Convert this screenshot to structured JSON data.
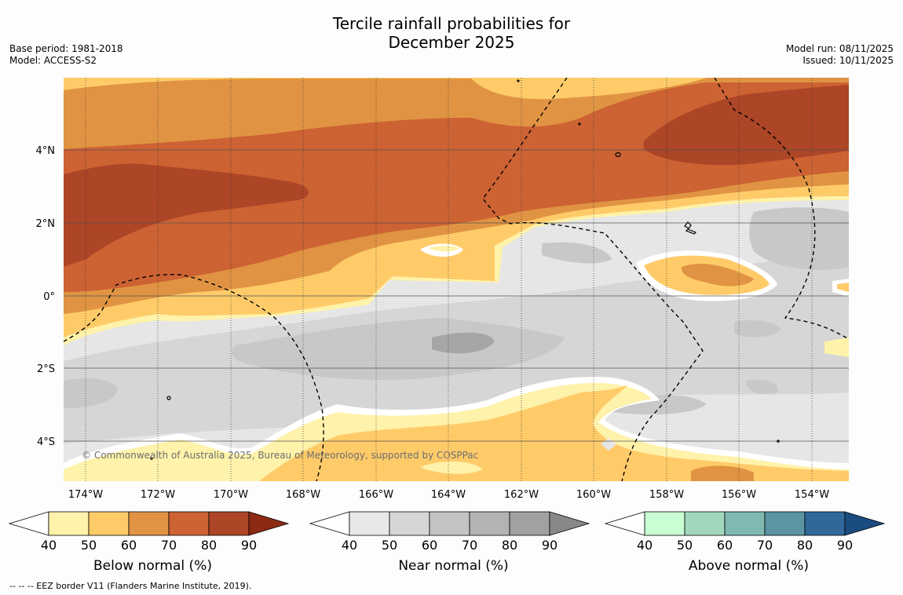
{
  "title_line1": "Tercile rainfall probabilities for",
  "title_line2": "December 2025",
  "base_period": "Base period: 1981-2018",
  "model": "Model: ACCESS-S2",
  "model_run": "Model run: 08/11/2025",
  "issued": "Issued: 10/11/2025",
  "map": {
    "lat_range": [
      -5.5,
      5.8
    ],
    "lon_range": [
      -174.8,
      -153.5
    ],
    "lat_labels": [
      "4°N",
      "2°N",
      "0°",
      "2°S",
      "4°S"
    ],
    "lon_labels": [
      "174°W",
      "172°W",
      "170°W",
      "168°W",
      "166°W",
      "164°W",
      "162°W",
      "160°W",
      "158°W",
      "156°W",
      "154°W"
    ],
    "copyright": "© Commonwealth of Australia 2025, Bureau of Meteorology, supported by COSPPac"
  },
  "colorbars": [
    {
      "label": "Below normal (%)",
      "ticks": [
        "40",
        "50",
        "60",
        "70",
        "80",
        "90"
      ],
      "colors": [
        "#fff2aa",
        "#ffcb69",
        "#e09443",
        "#cd6233",
        "#ad4527"
      ],
      "extend": "#8c2a13"
    },
    {
      "label": "Near normal (%)",
      "ticks": [
        "40",
        "50",
        "60",
        "70",
        "80",
        "90"
      ],
      "colors": [
        "#e8e8e8",
        "#d6d6d6",
        "#c4c4c4",
        "#b3b3b3",
        "#a1a1a1"
      ],
      "extend": "#888888"
    },
    {
      "label": "Above normal (%)",
      "ticks": [
        "40",
        "50",
        "60",
        "70",
        "80",
        "90"
      ],
      "colors": [
        "#c9fdd3",
        "#a1d8bd",
        "#80b8b2",
        "#5b94a2",
        "#2f6899"
      ],
      "extend": "#1b4c80"
    }
  ],
  "footnote": "--  --  -- EEZ border V11 (Flanders Marine Institute, 2019)."
}
